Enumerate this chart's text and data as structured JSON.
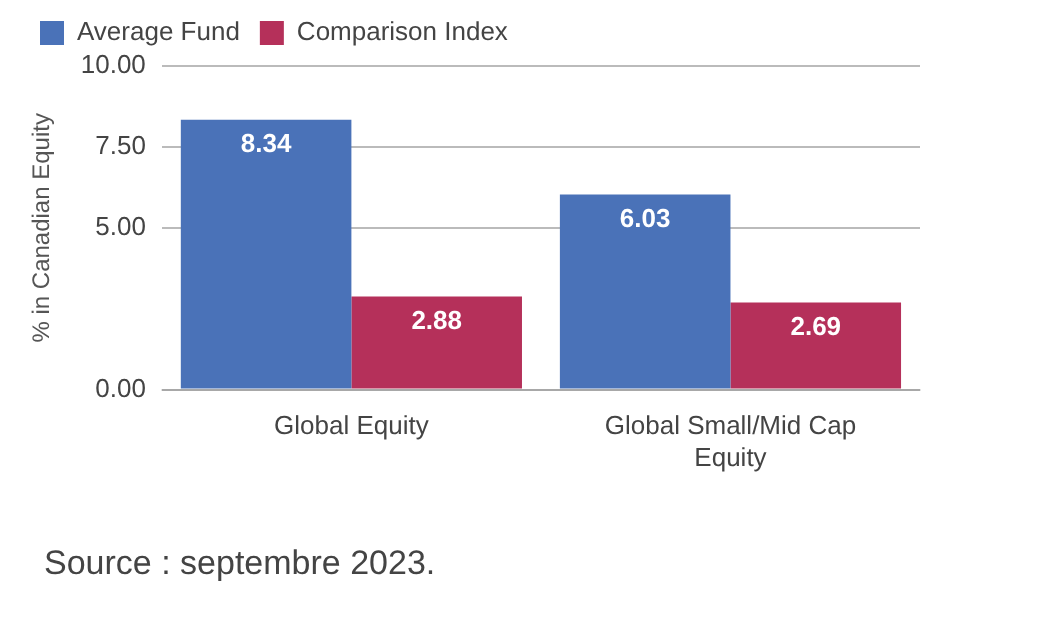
{
  "chart_data": {
    "type": "bar",
    "ylabel": "% in Canadian Equity",
    "categories": [
      "Global Equity",
      "Global Small/Mid Cap Equity"
    ],
    "series": [
      {
        "name": "Average Fund",
        "color": "#4a72b8",
        "values": [
          8.34,
          6.03
        ]
      },
      {
        "name": "Comparison Index",
        "color": "#b5305a",
        "values": [
          2.88,
          2.69
        ]
      }
    ],
    "ylim": [
      0,
      10
    ],
    "yticks": [
      {
        "value": 0,
        "label": "0.00"
      },
      {
        "value": 5,
        "label": "5.00"
      },
      {
        "value": 7.5,
        "label": "7.50"
      },
      {
        "value": 10,
        "label": "10.00"
      }
    ],
    "grid": "y",
    "legend": "top left",
    "data_labels": true,
    "annotations": [
      "Source : septembre 2023."
    ]
  }
}
